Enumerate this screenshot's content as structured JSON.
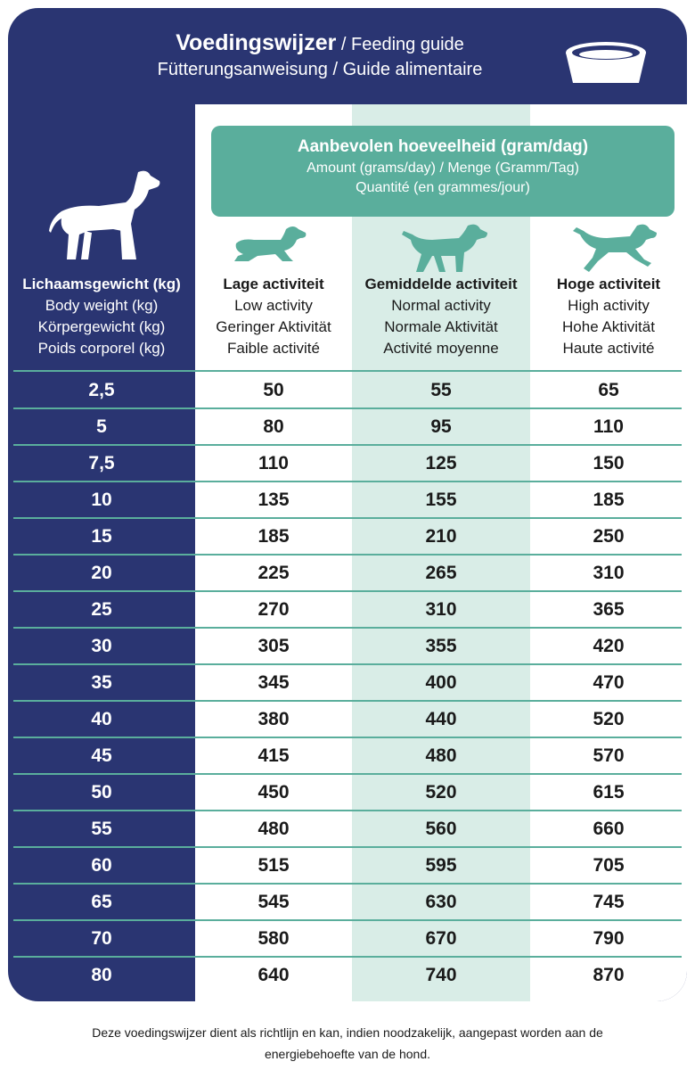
{
  "header": {
    "title_bold": "Voedingswijzer",
    "title_rest": " / Feeding guide",
    "subtitle": "Fütterungsanweisung / Guide alimentaire"
  },
  "amount": {
    "line1": "Aanbevolen hoeveelheid (gram/dag)",
    "line2": "Amount (grams/day) / Menge (Gramm/Tag)",
    "line3": "Quantité (en grammes/jour)"
  },
  "columns": {
    "weight": [
      "Lichaamsgewicht (kg)",
      "Body weight (kg)",
      "Körpergewicht (kg)",
      "Poids corporel (kg)"
    ],
    "low": [
      "Lage activiteit",
      "Low activity",
      "Geringer Aktivität",
      "Faible activité"
    ],
    "normal": [
      "Gemiddelde activiteit",
      "Normal activity",
      "Normale Aktivität",
      "Activité moyenne"
    ],
    "high": [
      "Hoge activiteit",
      "High activity",
      "Hohe Aktivität",
      "Haute activité"
    ]
  },
  "rows": [
    {
      "weight": "2,5",
      "low": "50",
      "normal": "55",
      "high": "65"
    },
    {
      "weight": "5",
      "low": "80",
      "normal": "95",
      "high": "110"
    },
    {
      "weight": "7,5",
      "low": "110",
      "normal": "125",
      "high": "150"
    },
    {
      "weight": "10",
      "low": "135",
      "normal": "155",
      "high": "185"
    },
    {
      "weight": "15",
      "low": "185",
      "normal": "210",
      "high": "250"
    },
    {
      "weight": "20",
      "low": "225",
      "normal": "265",
      "high": "310"
    },
    {
      "weight": "25",
      "low": "270",
      "normal": "310",
      "high": "365"
    },
    {
      "weight": "30",
      "low": "305",
      "normal": "355",
      "high": "420"
    },
    {
      "weight": "35",
      "low": "345",
      "normal": "400",
      "high": "470"
    },
    {
      "weight": "40",
      "low": "380",
      "normal": "440",
      "high": "520"
    },
    {
      "weight": "45",
      "low": "415",
      "normal": "480",
      "high": "570"
    },
    {
      "weight": "50",
      "low": "450",
      "normal": "520",
      "high": "615"
    },
    {
      "weight": "55",
      "low": "480",
      "normal": "560",
      "high": "660"
    },
    {
      "weight": "60",
      "low": "515",
      "normal": "595",
      "high": "705"
    },
    {
      "weight": "65",
      "low": "545",
      "normal": "630",
      "high": "745"
    },
    {
      "weight": "70",
      "low": "580",
      "normal": "670",
      "high": "790"
    },
    {
      "weight": "80",
      "low": "640",
      "normal": "740",
      "high": "870"
    }
  ],
  "footer": {
    "line1": "Deze voedingswijzer dient als richtlijn en kan, indien noodzakelijk, aangepast worden aan de",
    "line2": "energiebehoefte van de hond."
  },
  "colors": {
    "navy": "#2a3572",
    "teal": "#5aae9c",
    "pale_teal": "#d9ede7"
  },
  "icons": [
    "food-bowl-icon",
    "standing-dog-icon",
    "lying-dog-icon",
    "walking-dog-icon",
    "running-dog-icon"
  ]
}
